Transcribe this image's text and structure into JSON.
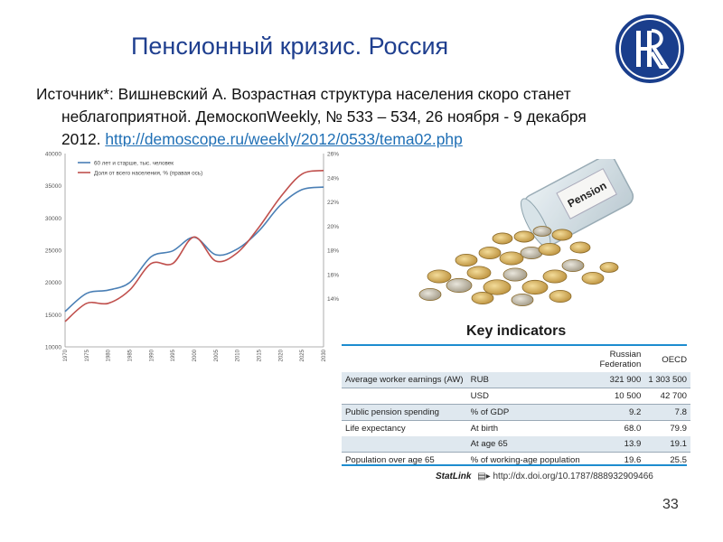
{
  "slide": {
    "title": "Пенсионный кризис. Россия",
    "source_line1": "Источник*: Вишневский А. Возрастная структура населения скоро станет",
    "source_line2": "неблагоприятной. ДемоскопWeekly, № 533 – 534, 26 ноября - 9 декабря",
    "source_line3_prefix": "2012. ",
    "source_link": "http://demoscope.ru/weekly/2012/0533/tema02.php",
    "page_number": "33"
  },
  "logo": {
    "icon": "hse-logo-icon",
    "color": "#1a3e8c"
  },
  "photo": {
    "icon": "pension-jar-coins-icon",
    "jar_label": "Pension"
  },
  "chart_data": {
    "type": "line",
    "x": [
      1970,
      1975,
      1980,
      1985,
      1990,
      1995,
      2000,
      2005,
      2010,
      2015,
      2020,
      2025,
      2030
    ],
    "x_ticks": [
      "1970",
      "1975",
      "1980",
      "1985",
      "1990",
      "1995",
      "2000",
      "2005",
      "2010",
      "2015",
      "2020",
      "2025",
      "2030"
    ],
    "y_left": {
      "ylim": [
        10000,
        40000
      ],
      "ticks": [
        "10000",
        "15000",
        "20000",
        "25000",
        "30000",
        "35000",
        "40000"
      ]
    },
    "y_right": {
      "ylim": [
        10,
        26
      ],
      "ticks": [
        "14%",
        "16%",
        "18%",
        "20%",
        "22%",
        "24%",
        "26%"
      ]
    },
    "series": [
      {
        "name": "60 лет и старше, тыс. человек",
        "axis": "left",
        "color": "#4a7fb5",
        "values": [
          15500,
          18300,
          18800,
          20000,
          24000,
          24900,
          27000,
          24300,
          25200,
          28000,
          32000,
          34400,
          34800
        ]
      },
      {
        "name": "Доля от всего населения, % (правая ось)",
        "axis": "right",
        "color": "#c0504d",
        "values": [
          12.1,
          13.6,
          13.6,
          14.7,
          16.9,
          16.9,
          19.1,
          17.1,
          17.8,
          19.9,
          22.4,
          24.3,
          24.6
        ]
      }
    ],
    "grid": false,
    "legend": "top-left"
  },
  "key_indicators": {
    "title": "Key indicators",
    "columns": [
      "",
      "",
      "Russian Federation",
      "OECD"
    ],
    "rows": [
      {
        "label": "Average worker earnings (AW)",
        "unit": "RUB",
        "rf": "321 900",
        "oecd": "1 303 500",
        "shade": true
      },
      {
        "label": "",
        "unit": "USD",
        "rf": "10 500",
        "oecd": "42 700",
        "shade": false
      },
      {
        "label": "Public pension spending",
        "unit": "% of GDP",
        "rf": "9.2",
        "oecd": "7.8",
        "shade": true
      },
      {
        "label": "Life expectancy",
        "unit": "At birth",
        "rf": "68.0",
        "oecd": "79.9",
        "shade": false
      },
      {
        "label": "",
        "unit": "At age 65",
        "rf": "13.9",
        "oecd": "19.1",
        "shade": true
      },
      {
        "label": "Population over age 65",
        "unit": "% of working-age population",
        "rf": "19.6",
        "oecd": "25.5",
        "shade": false
      }
    ],
    "statlink_label": "StatLink",
    "statlink_url": "http://dx.doi.org/10.1787/888932909466"
  }
}
